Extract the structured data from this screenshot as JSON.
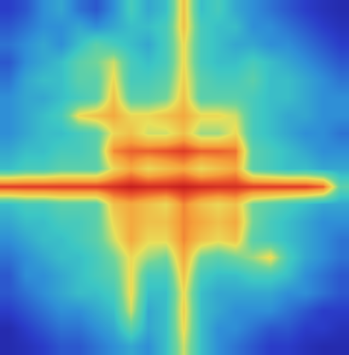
{
  "chart_data": {
    "type": "heatmap",
    "tick_labels": false,
    "zlim": [
      0,
      1
    ],
    "z": [
      [
        0.15,
        0.2,
        0.3,
        0.35,
        0.25,
        0.2,
        0.3,
        0.45,
        0.35,
        0.4,
        0.75,
        0.4,
        0.45,
        0.35,
        0.3,
        0.25,
        0.2,
        0.15,
        0.12,
        0.1
      ],
      [
        0.2,
        0.25,
        0.3,
        0.3,
        0.35,
        0.3,
        0.35,
        0.4,
        0.4,
        0.45,
        0.75,
        0.45,
        0.4,
        0.4,
        0.3,
        0.3,
        0.25,
        0.2,
        0.15,
        0.12
      ],
      [
        0.25,
        0.3,
        0.35,
        0.3,
        0.4,
        0.5,
        0.45,
        0.4,
        0.35,
        0.45,
        0.7,
        0.45,
        0.4,
        0.35,
        0.35,
        0.3,
        0.3,
        0.25,
        0.2,
        0.15
      ],
      [
        0.2,
        0.3,
        0.35,
        0.4,
        0.5,
        0.55,
        0.65,
        0.45,
        0.4,
        0.45,
        0.7,
        0.45,
        0.4,
        0.4,
        0.45,
        0.4,
        0.35,
        0.3,
        0.25,
        0.2
      ],
      [
        0.25,
        0.35,
        0.4,
        0.4,
        0.5,
        0.5,
        0.7,
        0.45,
        0.45,
        0.5,
        0.72,
        0.5,
        0.45,
        0.45,
        0.5,
        0.4,
        0.4,
        0.35,
        0.3,
        0.25
      ],
      [
        0.3,
        0.35,
        0.35,
        0.4,
        0.45,
        0.5,
        0.75,
        0.5,
        0.5,
        0.55,
        0.75,
        0.5,
        0.5,
        0.5,
        0.45,
        0.4,
        0.4,
        0.35,
        0.3,
        0.3
      ],
      [
        0.3,
        0.35,
        0.4,
        0.45,
        0.7,
        0.75,
        0.8,
        0.7,
        0.7,
        0.75,
        0.8,
        0.7,
        0.7,
        0.65,
        0.45,
        0.4,
        0.35,
        0.35,
        0.3,
        0.3
      ],
      [
        0.3,
        0.35,
        0.4,
        0.4,
        0.45,
        0.5,
        0.7,
        0.75,
        0.65,
        0.65,
        0.75,
        0.6,
        0.6,
        0.7,
        0.45,
        0.4,
        0.35,
        0.3,
        0.3,
        0.25
      ],
      [
        0.35,
        0.4,
        0.4,
        0.45,
        0.45,
        0.5,
        0.85,
        0.9,
        0.9,
        0.92,
        0.95,
        0.9,
        0.9,
        0.88,
        0.5,
        0.45,
        0.4,
        0.35,
        0.3,
        0.3
      ],
      [
        0.4,
        0.45,
        0.45,
        0.5,
        0.5,
        0.5,
        0.7,
        0.8,
        0.7,
        0.75,
        0.8,
        0.7,
        0.75,
        0.8,
        0.5,
        0.45,
        0.4,
        0.4,
        0.35,
        0.35
      ],
      [
        0.95,
        0.95,
        0.95,
        0.95,
        0.95,
        0.95,
        0.97,
        1.0,
        0.98,
        0.98,
        1.0,
        0.98,
        0.97,
        0.97,
        0.95,
        0.95,
        0.95,
        0.95,
        0.9,
        0.5
      ],
      [
        0.4,
        0.45,
        0.45,
        0.5,
        0.5,
        0.5,
        0.75,
        0.8,
        0.75,
        0.7,
        0.85,
        0.75,
        0.7,
        0.75,
        0.55,
        0.5,
        0.45,
        0.4,
        0.35,
        0.35
      ],
      [
        0.35,
        0.4,
        0.4,
        0.45,
        0.45,
        0.5,
        0.7,
        0.8,
        0.75,
        0.75,
        0.85,
        0.8,
        0.75,
        0.8,
        0.55,
        0.45,
        0.4,
        0.35,
        0.3,
        0.3
      ],
      [
        0.3,
        0.35,
        0.4,
        0.4,
        0.45,
        0.5,
        0.65,
        0.8,
        0.7,
        0.7,
        0.85,
        0.75,
        0.7,
        0.75,
        0.5,
        0.45,
        0.4,
        0.35,
        0.3,
        0.25
      ],
      [
        0.25,
        0.3,
        0.35,
        0.4,
        0.4,
        0.45,
        0.55,
        0.7,
        0.6,
        0.55,
        0.8,
        0.55,
        0.5,
        0.55,
        0.6,
        0.7,
        0.45,
        0.35,
        0.3,
        0.25
      ],
      [
        0.2,
        0.3,
        0.3,
        0.35,
        0.4,
        0.45,
        0.5,
        0.7,
        0.45,
        0.45,
        0.75,
        0.45,
        0.4,
        0.4,
        0.45,
        0.45,
        0.4,
        0.3,
        0.25,
        0.2
      ],
      [
        0.2,
        0.25,
        0.3,
        0.35,
        0.4,
        0.4,
        0.45,
        0.7,
        0.4,
        0.4,
        0.7,
        0.4,
        0.35,
        0.35,
        0.35,
        0.35,
        0.3,
        0.3,
        0.25,
        0.2
      ],
      [
        0.15,
        0.2,
        0.25,
        0.3,
        0.3,
        0.35,
        0.4,
        0.65,
        0.35,
        0.4,
        0.72,
        0.4,
        0.35,
        0.3,
        0.3,
        0.3,
        0.25,
        0.2,
        0.15,
        0.15
      ],
      [
        0.1,
        0.15,
        0.2,
        0.25,
        0.25,
        0.3,
        0.35,
        0.5,
        0.35,
        0.4,
        0.7,
        0.4,
        0.3,
        0.3,
        0.25,
        0.2,
        0.2,
        0.15,
        0.15,
        0.12
      ],
      [
        0.1,
        0.12,
        0.15,
        0.2,
        0.2,
        0.25,
        0.3,
        0.35,
        0.3,
        0.4,
        0.65,
        0.4,
        0.3,
        0.25,
        0.2,
        0.15,
        0.15,
        0.12,
        0.1,
        0.1
      ]
    ]
  }
}
